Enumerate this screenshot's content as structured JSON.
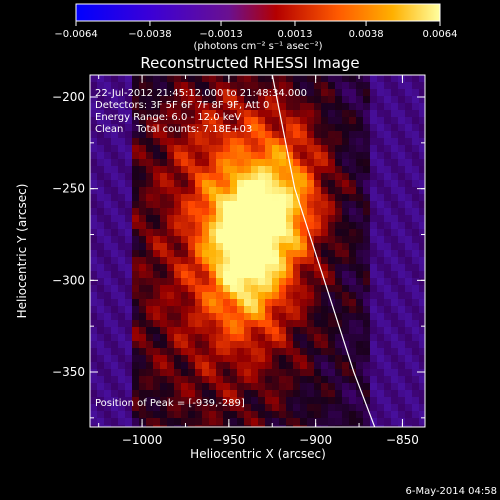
{
  "chart_data": {
    "type": "heatmap",
    "title": "Reconstructed RHESSI Image",
    "xlabel": "Heliocentric X (arcsec)",
    "ylabel": "Heliocentric Y (arcsec)",
    "xlim": [
      -1030,
      -837
    ],
    "ylim": [
      -380,
      -188
    ],
    "x_ticks": [
      {
        "value": -1000,
        "label": "−1000"
      },
      {
        "value": -950,
        "label": "−950"
      },
      {
        "value": -900,
        "label": "−900"
      },
      {
        "value": -850,
        "label": "−850"
      }
    ],
    "y_ticks": [
      {
        "value": -200,
        "label": "−200"
      },
      {
        "value": -250,
        "label": "−250"
      },
      {
        "value": -300,
        "label": "−300"
      },
      {
        "value": -350,
        "label": "−350"
      }
    ],
    "colorbar": {
      "range": [
        -0.0064,
        0.0064
      ],
      "tick_labels": [
        "−0.0064",
        "−0.0038",
        "−0.0013",
        "0.0013",
        "0.0038",
        "0.0064"
      ],
      "tick_values": [
        -0.0064,
        -0.0038,
        -0.0013,
        0.0013,
        0.0038,
        0.0064
      ],
      "unit_label": "(photons cm⁻² s⁻¹ asec⁻²)",
      "colors": [
        "#0000ff",
        "#6a00c8",
        "#b40000",
        "#ff5a00",
        "#ffb000",
        "#ffff80"
      ]
    },
    "annotations": [
      "22-Jul-2012 21:45:12.000 to 21:48:34.000",
      "Detectors: 3F 5F 6F 7F 8F 9F, Att 0",
      "Energy Range: 6.0 - 12.0 keV",
      "Clean    Total counts: 7.18E+03"
    ],
    "peak_label": "Position of Peak = [-939,-289]",
    "peak": {
      "x": -939,
      "y": -289
    },
    "limb": [
      [
        -925,
        -188
      ],
      [
        -912,
        -250
      ],
      [
        -895,
        -300
      ],
      [
        -878,
        -350
      ],
      [
        -866,
        -380
      ]
    ]
  },
  "footer": {
    "date": "6-May-2014 04:58"
  }
}
